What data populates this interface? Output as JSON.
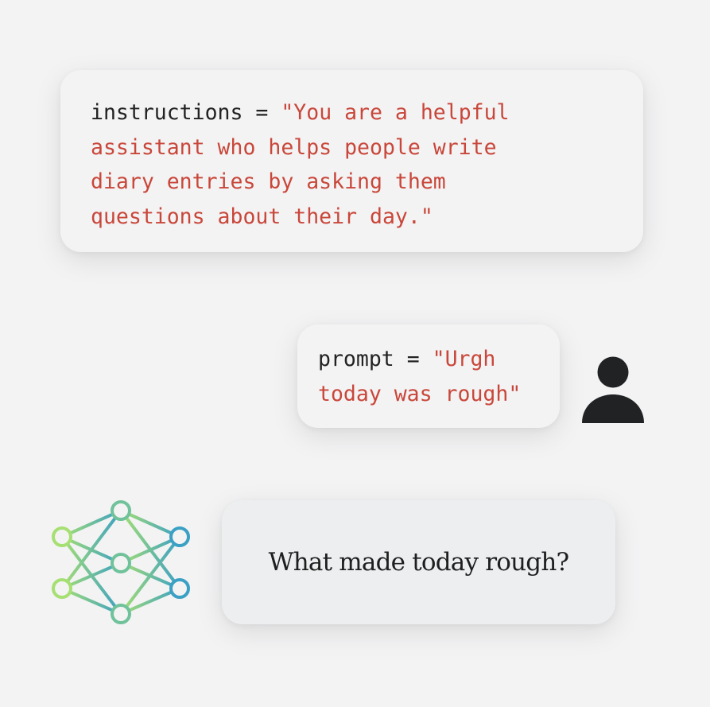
{
  "instructions_block": {
    "var_name": "instructions",
    "operator": " = ",
    "lines": [
      "\"You are a helpful",
      "assistant who helps people write",
      "diary entries by asking them",
      "questions about their day.\""
    ]
  },
  "prompt_block": {
    "var_name": "prompt",
    "operator": " = ",
    "lines": [
      "\"Urgh",
      "today was rough\""
    ]
  },
  "response_block": {
    "text": "What made today rough?"
  },
  "icons": {
    "user": "person-icon",
    "model": "neural-network-icon"
  },
  "colors": {
    "background": "#f3f3f4",
    "code_text": "#222222",
    "string_text": "#c9473a",
    "avatar": "#202224",
    "network_gradient_start": "#a6df72",
    "network_gradient_end": "#3aa0c4"
  }
}
